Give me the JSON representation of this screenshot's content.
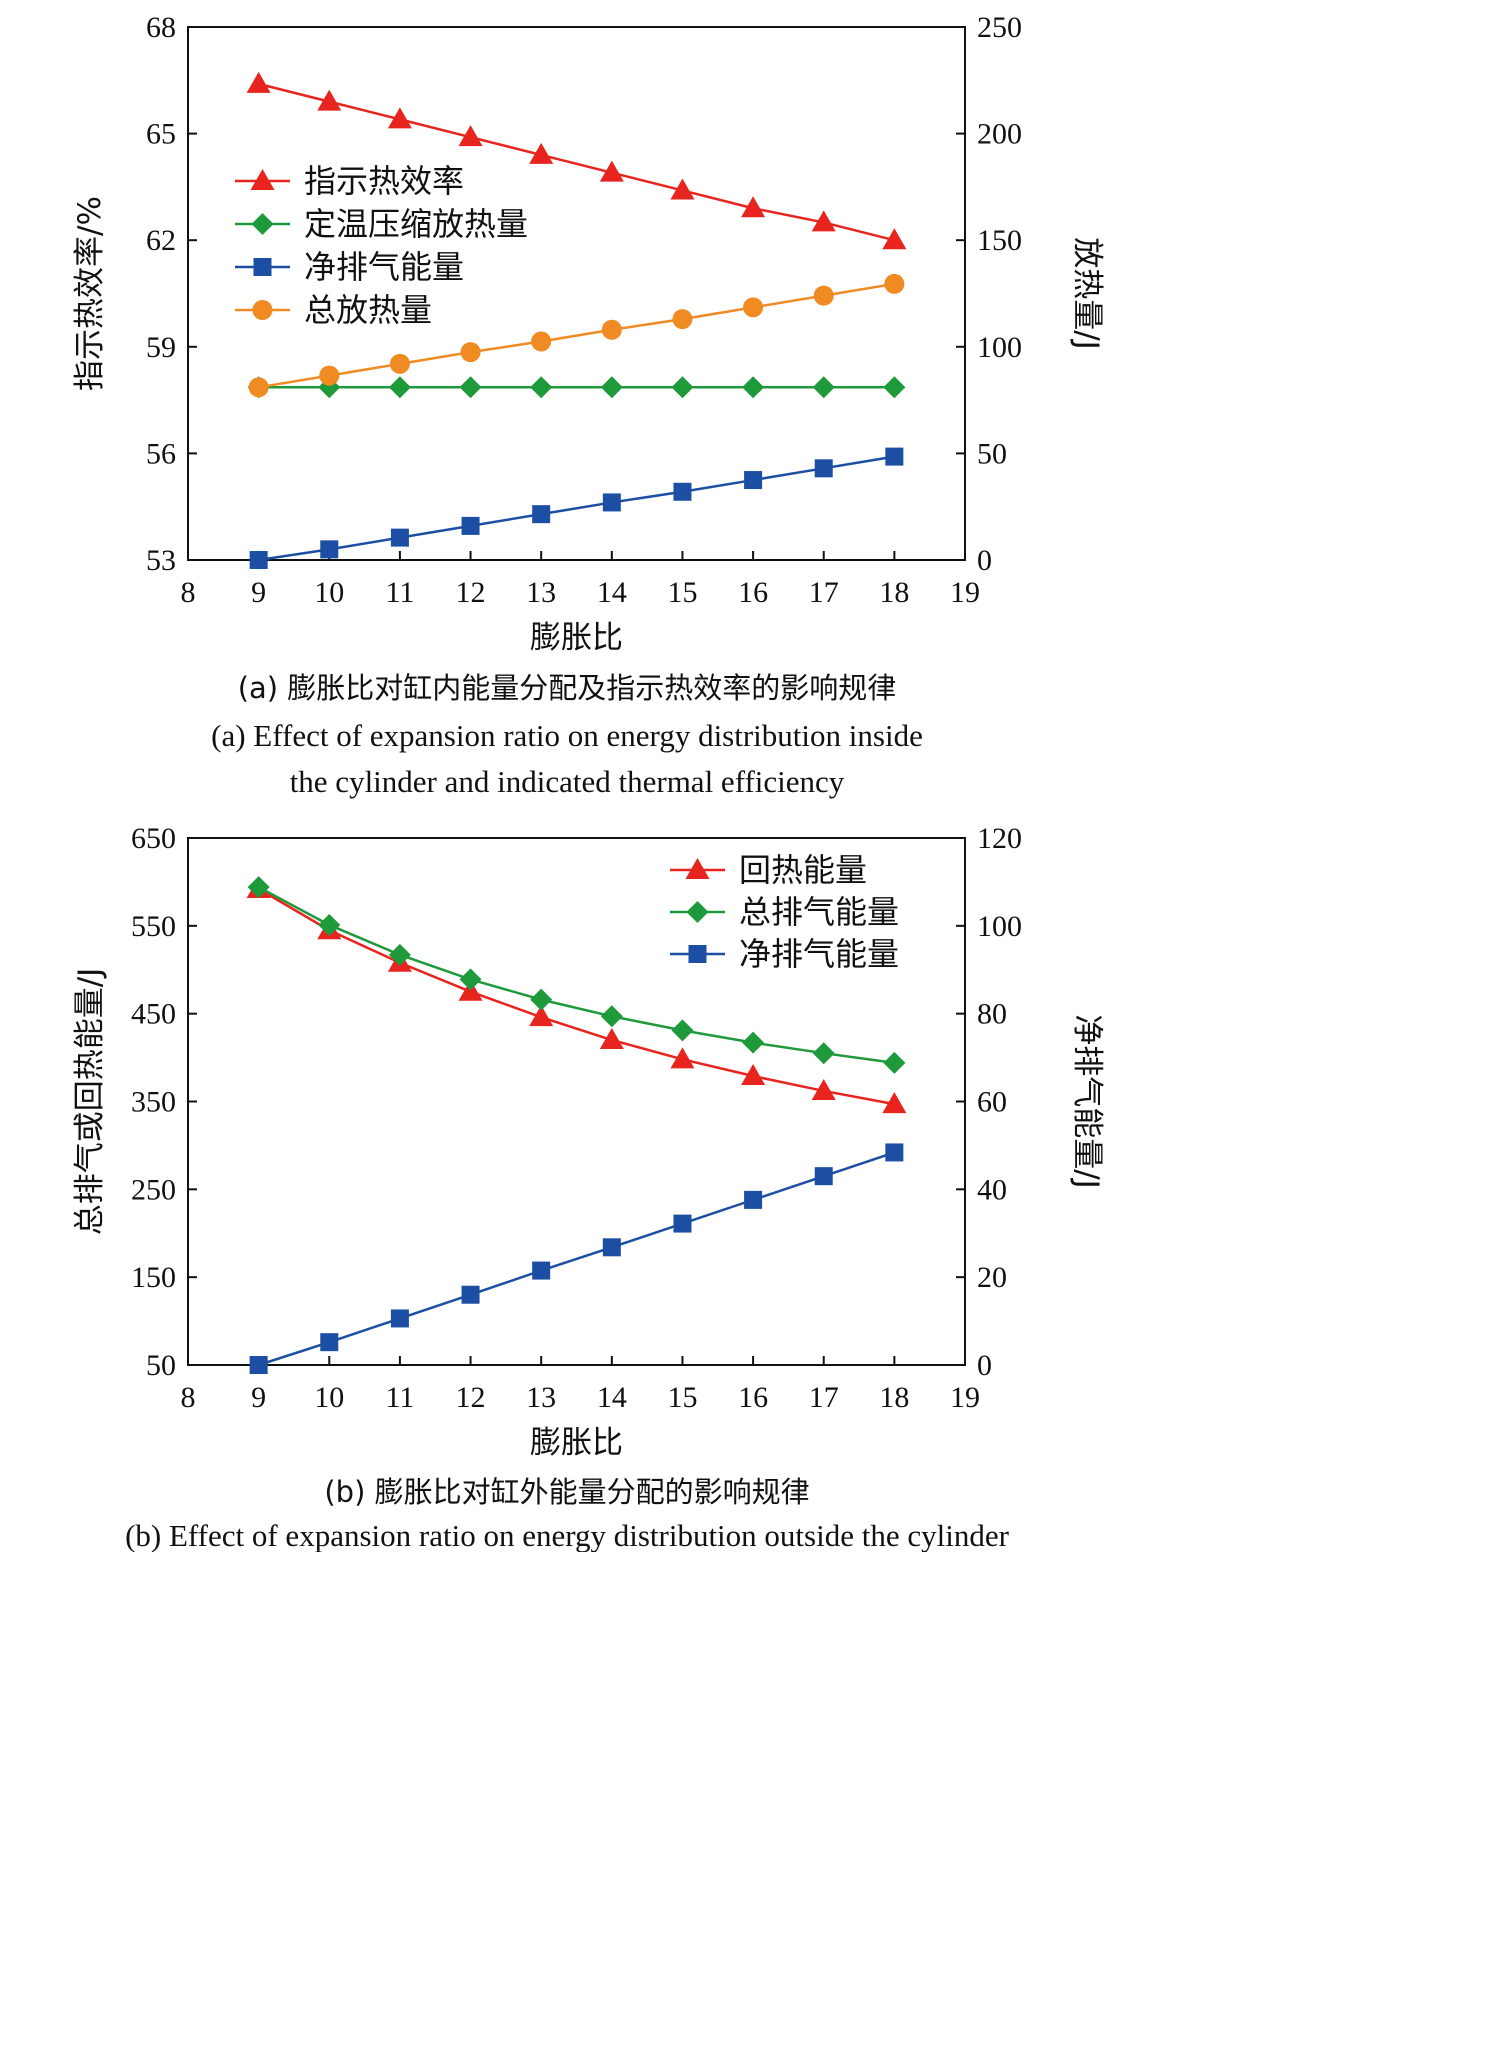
{
  "chart_data": [
    {
      "type": "line",
      "xlabel": "膨胀比",
      "ylabel": "指示热效率/%",
      "y2label": "放热量/J",
      "xlim": [
        8,
        19
      ],
      "xticks": [
        8,
        9,
        10,
        11,
        12,
        13,
        14,
        15,
        16,
        17,
        18,
        19
      ],
      "ylim": [
        53,
        68
      ],
      "yticks": [
        53,
        56,
        59,
        62,
        65,
        68
      ],
      "y2lim": [
        0,
        250
      ],
      "y2ticks": [
        0,
        50,
        100,
        150,
        200,
        250
      ],
      "legend": "upper-left",
      "caption_cn": "(a) 膨胀比对缸内能量分配及指示热效率的影响规律",
      "caption_en": [
        "(a) Effect of expansion ratio on energy distribution inside",
        "the cylinder and indicated thermal efficiency"
      ],
      "x": [
        9,
        10,
        11,
        12,
        13,
        14,
        15,
        16,
        17,
        18
      ],
      "series": [
        {
          "name": "指示热效率",
          "axis": "left",
          "marker": "triangle",
          "color": "#e8241e",
          "values": [
            66.4,
            65.9,
            65.4,
            64.9,
            64.4,
            63.9,
            63.4,
            62.9,
            62.5,
            62.0
          ]
        },
        {
          "name": "定温压缩放热量",
          "axis": "right",
          "marker": "diamond",
          "color": "#1f9a3b",
          "values": [
            81,
            81,
            81,
            81,
            81,
            81,
            81,
            81,
            81,
            81
          ]
        },
        {
          "name": "净排气能量",
          "axis": "right",
          "marker": "square",
          "color": "#1c4fa3",
          "values": [
            0,
            5,
            10.5,
            16,
            21.5,
            27,
            32,
            37.5,
            43,
            48.5
          ]
        },
        {
          "name": "总放热量",
          "axis": "right",
          "marker": "circle",
          "color": "#f08a22",
          "values": [
            81,
            86.5,
            92,
            97.5,
            102.5,
            108,
            113,
            118.5,
            124,
            129.5
          ]
        }
      ]
    },
    {
      "type": "line",
      "xlabel": "膨胀比",
      "ylabel": "总排气或回热能量/J",
      "y2label": "净排气能量/J",
      "xlim": [
        8,
        19
      ],
      "xticks": [
        8,
        9,
        10,
        11,
        12,
        13,
        14,
        15,
        16,
        17,
        18,
        19
      ],
      "ylim": [
        50,
        650
      ],
      "yticks": [
        50,
        150,
        250,
        350,
        450,
        550,
        650
      ],
      "y2lim": [
        0,
        120
      ],
      "y2ticks": [
        0,
        20,
        40,
        60,
        80,
        100,
        120
      ],
      "legend": "upper-right",
      "caption_cn": "(b) 膨胀比对缸外能量分配的影响规律",
      "caption_en": [
        "(b) Effect of expansion ratio on energy distribution outside the cylinder"
      ],
      "x": [
        9,
        10,
        11,
        12,
        13,
        14,
        15,
        16,
        17,
        18
      ],
      "series": [
        {
          "name": "回热能量",
          "axis": "left",
          "marker": "triangle",
          "color": "#e8241e",
          "values": [
            592,
            545,
            508,
            475,
            446,
            420,
            398,
            379,
            362,
            347
          ]
        },
        {
          "name": "总排气能量",
          "axis": "left",
          "marker": "diamond",
          "color": "#1f9a3b",
          "values": [
            594,
            551,
            517,
            489,
            466,
            447,
            431,
            417,
            405,
            394
          ]
        },
        {
          "name": "净排气能量",
          "axis": "right",
          "marker": "square",
          "color": "#1c4fa3",
          "values": [
            0,
            5.2,
            10.6,
            16,
            21.5,
            26.8,
            32.2,
            37.6,
            43,
            48.4
          ]
        }
      ]
    }
  ]
}
